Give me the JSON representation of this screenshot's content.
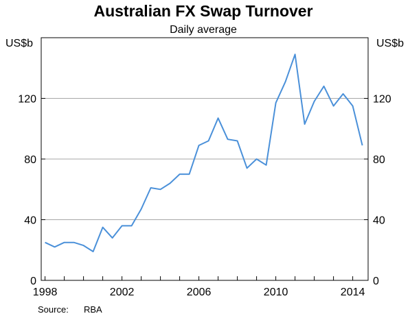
{
  "chart_data": {
    "type": "line",
    "title": "Australian FX Swap Turnover",
    "subtitle": "Daily average",
    "ylabel_left": "US$b",
    "ylabel_right": "US$b",
    "xlabel": "",
    "xlim": [
      1997.8,
      2014.8
    ],
    "ylim": [
      0,
      160
    ],
    "yticks": [
      0,
      40,
      80,
      120
    ],
    "xticks": [
      1998,
      2002,
      2006,
      2010,
      2014
    ],
    "grid": true,
    "source_label": "Source:",
    "source_value": "RBA",
    "color": "#4a90d9",
    "series": [
      {
        "x": [
          1998.0,
          1998.5,
          1999.0,
          1999.5,
          2000.0,
          2000.5,
          2001.0,
          2001.5,
          2002.0,
          2002.5,
          2003.0,
          2003.5,
          2004.0,
          2004.5,
          2005.0,
          2005.5,
          2006.0,
          2006.5,
          2007.0,
          2007.5,
          2008.0,
          2008.5,
          2009.0,
          2009.5,
          2010.0,
          2010.5,
          2011.0,
          2011.5,
          2012.0,
          2012.5,
          2013.0,
          2013.5,
          2014.0,
          2014.5
        ],
        "y": [
          25,
          22,
          25,
          25,
          23,
          19,
          35,
          28,
          36,
          36,
          47,
          61,
          60,
          64,
          70,
          70,
          89,
          92,
          107,
          93,
          92,
          74,
          80,
          76,
          117,
          131,
          149,
          103,
          118,
          128,
          115,
          123,
          115,
          89
        ]
      }
    ]
  }
}
